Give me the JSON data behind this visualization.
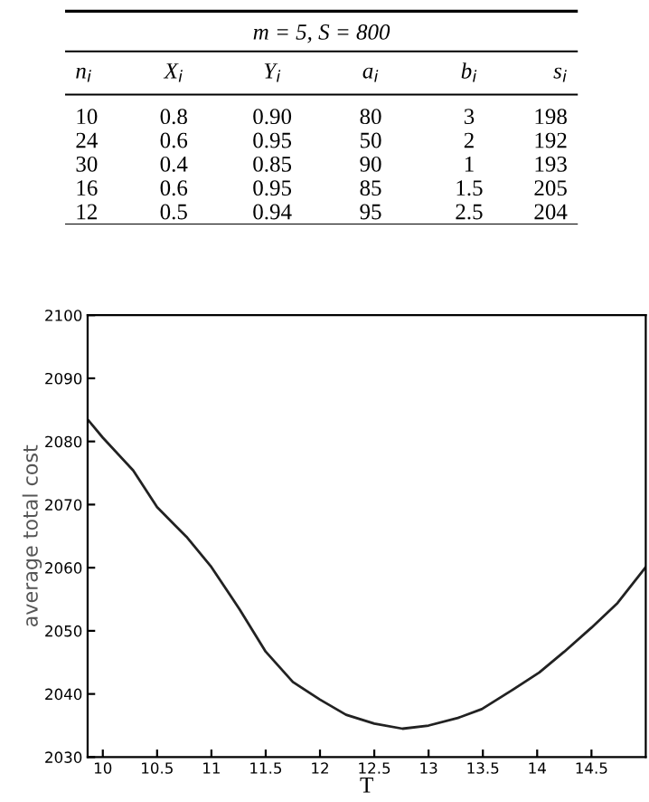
{
  "chart_data": [
    {
      "type": "other",
      "title": "m = 5, S = 800",
      "categories": [
        "n$_{i}$",
        "X$_{i}$",
        "Y$_{i}$",
        "a$_{i}$",
        "b$_{i}$",
        "s$_{i}$"
      ],
      "cell_labels": [
        [
          "10",
          "0.8",
          "0.90",
          "80",
          "3",
          "198"
        ],
        [
          "24",
          "0.6",
          "0.95",
          "50",
          "2",
          "192"
        ],
        [
          "30",
          "0.4",
          "0.85",
          "90",
          "1",
          "193"
        ],
        [
          "16",
          "0.6",
          "0.95",
          "85",
          "1.5",
          "205"
        ],
        [
          "12",
          "0.5",
          "0.94",
          "95",
          "2.5",
          "204"
        ]
      ]
    },
    {
      "type": "line",
      "xlabel": "T",
      "ylabel": "average total cost",
      "color": "#222222",
      "x": [
        9.86,
        10,
        10.28,
        10.5,
        10.66,
        10.77,
        11,
        11.26,
        11.5,
        11.75,
        12,
        12.24,
        12.5,
        12.76,
        13,
        13.27,
        13.49,
        13.76,
        14.02,
        14.25,
        14.5,
        14.74,
        15
      ],
      "values": [
        2083.5,
        2080.6,
        2075.4,
        2069.6,
        2066.8,
        2064.9,
        2060.1,
        2053.4,
        2046.7,
        2041.9,
        2039.1,
        2036.7,
        2035.3,
        2034.5,
        2035,
        2036.2,
        2037.6,
        2040.5,
        2043.4,
        2046.7,
        2050.5,
        2054.4,
        2060.1
      ],
      "xlim": [
        9.86,
        15
      ],
      "ylim": [
        2030,
        2100
      ],
      "xticks": [
        10,
        10.5,
        11,
        11.5,
        12,
        12.5,
        13,
        13.5,
        14,
        14.5
      ],
      "yticks": [
        2030,
        2040,
        2050,
        2060,
        2070,
        2080,
        2090,
        2100
      ],
      "grid": false,
      "marker": "none",
      "line_style": "solid"
    }
  ]
}
